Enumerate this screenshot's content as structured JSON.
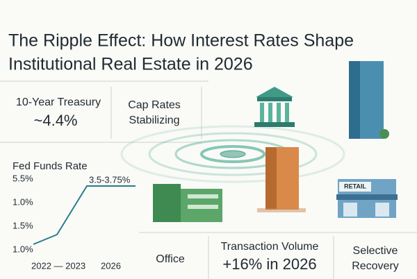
{
  "header": {
    "title_lines": [
      "The Ripple Effect: How Interest Rates Shape",
      "Institutional Real Estate in 2026"
    ]
  },
  "cards": {
    "treasury": {
      "label": "10-Year Treasury",
      "value": "~4.4%"
    },
    "cap_rates": {
      "lines": [
        "Cap Rates",
        "Stabilizing"
      ]
    },
    "fed_funds": {
      "title": "Fed Funds Rate",
      "axis_labels": [
        "5.5%",
        "1.0%",
        "1.5%",
        "1.0%"
      ],
      "annotation": "3.5-3.75%",
      "x_labels": [
        "2022 — 2023",
        "2026"
      ]
    },
    "office": {
      "label": "Office"
    },
    "transaction": {
      "label": "Transaction Volume",
      "value": "+16% in 2026"
    },
    "selective": {
      "lines": [
        "Selective",
        "Recovery"
      ]
    }
  },
  "illustration": {
    "retail_sign": "RETAIL"
  }
}
